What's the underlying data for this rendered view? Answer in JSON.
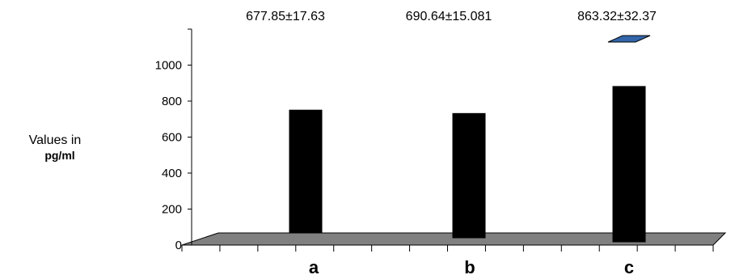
{
  "chart_data": {
    "type": "bar",
    "title": "",
    "xlabel": "",
    "ylabel_line1": "Values in",
    "ylabel_line2": "pg/ml",
    "categories": [
      "a",
      "b",
      "c"
    ],
    "values": [
      677.85,
      690.64,
      863.32
    ],
    "annotations": [
      "677.85±17.63",
      "690.64±15.081",
      "863.32±32.37"
    ],
    "yticks": [
      "0",
      "200",
      "400",
      "600",
      "800",
      "1000"
    ],
    "ylim": [
      0,
      1200
    ],
    "grid": false,
    "legend": "none",
    "colors": {
      "bar": "#000000",
      "floor": "#808080",
      "marker": "#3366aa"
    }
  }
}
